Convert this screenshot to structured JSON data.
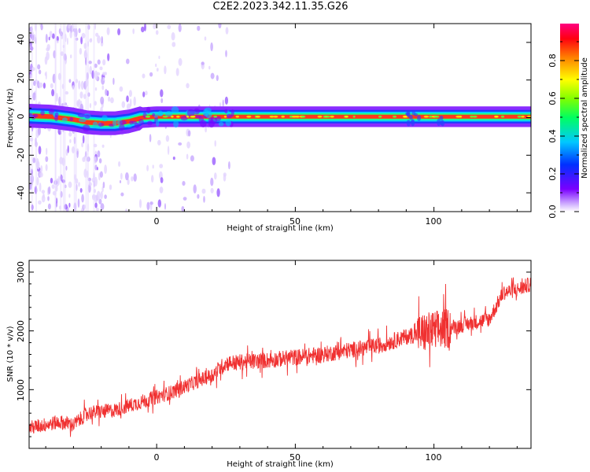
{
  "title": "C2E2.2023.342.11.35.G26",
  "top_panel": {
    "xlabel": "Height of straight line (km)",
    "ylabel": "Frequency (Hz)",
    "x_ticks": [
      "0",
      "50",
      "100"
    ],
    "y_ticks": [
      "40",
      "20",
      "0",
      "-20",
      "-40"
    ]
  },
  "colorbar": {
    "label": "Normalized spectral amplitude",
    "ticks": [
      "0.0",
      "0.2",
      "0.4",
      "0.6",
      "0.8"
    ]
  },
  "bottom_panel": {
    "xlabel": "Height of straight line (km)",
    "ylabel": "SNR (10 * v/v)",
    "x_ticks": [
      "0",
      "50",
      "100"
    ],
    "y_ticks": [
      "3000",
      "2000",
      "1000"
    ]
  },
  "chart_data": [
    {
      "type": "heatmap",
      "title": "C2E2.2023.342.11.35.G26",
      "xlabel": "Height of straight line (km)",
      "ylabel": "Frequency (Hz)",
      "xlim": [
        -46,
        135
      ],
      "ylim": [
        -50,
        50
      ],
      "colorbar_label": "Normalized spectral amplitude",
      "colorbar_range": [
        0,
        1
      ],
      "colormap": "gist_rainbow (white at 0 -> purple -> blue -> cyan -> green -> yellow -> red -> pink at 1)",
      "ridge": {
        "description": "dominant Doppler line frequency vs height",
        "x": [
          -46,
          -38,
          -30,
          -25,
          -20,
          -15,
          -10,
          -5,
          0,
          10,
          20,
          25,
          50,
          90,
          95,
          100,
          105,
          135
        ],
        "frequency_hz": [
          1,
          0.5,
          -1,
          -2.5,
          -3,
          -3,
          -2,
          0,
          0.5,
          0.5,
          0.5,
          0.5,
          0.5,
          0.5,
          0.5,
          0.5,
          0.5,
          0.5
        ]
      }
    },
    {
      "type": "line",
      "xlabel": "Height of straight line (km)",
      "ylabel": "SNR (10 * v/v)",
      "xlim": [
        -46,
        135
      ],
      "ylim": [
        0,
        3200
      ],
      "line_color": "#f03030",
      "trend": {
        "x": [
          -46,
          -35,
          -30,
          -25,
          -15,
          -5,
          5,
          15,
          20,
          25,
          40,
          60,
          80,
          90,
          100,
          110,
          120,
          125,
          130,
          135
        ],
        "snr": [
          350,
          450,
          400,
          600,
          650,
          800,
          950,
          1150,
          1250,
          1450,
          1500,
          1600,
          1750,
          1900,
          2000,
          2100,
          2200,
          2650,
          2700,
          2800
        ]
      },
      "noise_amplitude": [
        {
          "x": [
            -46,
            20
          ],
          "amp": 250
        },
        {
          "x": [
            20,
            94
          ],
          "amp": 280
        },
        {
          "x": [
            94,
            106
          ],
          "amp": 700
        },
        {
          "x": [
            106,
            135
          ],
          "amp": 260
        }
      ]
    }
  ]
}
